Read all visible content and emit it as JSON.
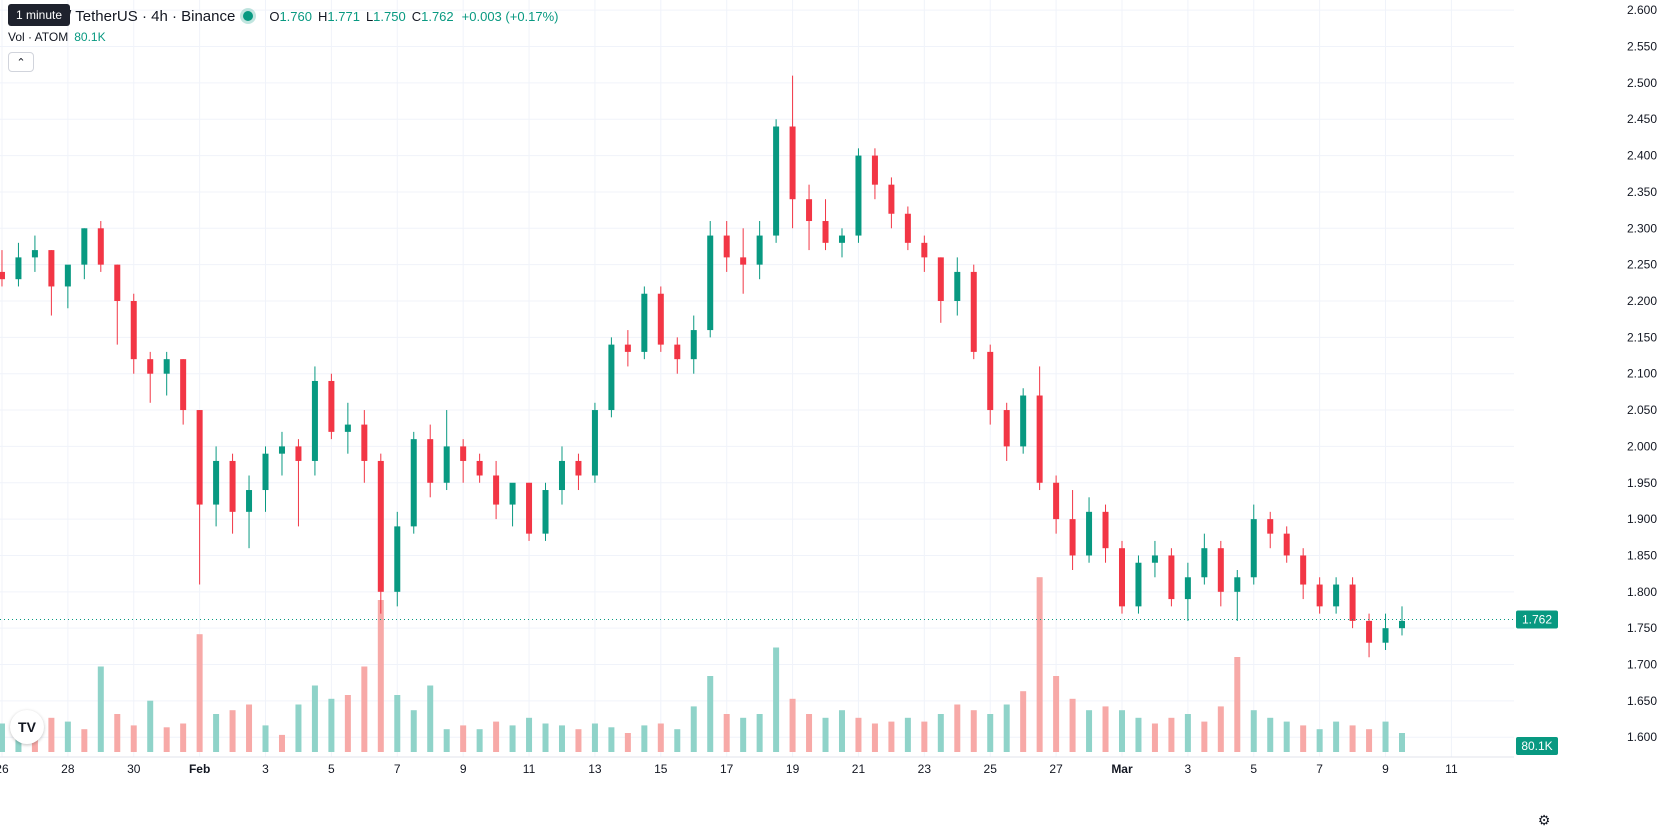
{
  "header": {
    "symbol_title": "Cosmos / TetherUS · 4h · Binance",
    "tooltip": "1 minute",
    "ohlc": {
      "o_label": "O",
      "o": "1.760",
      "h_label": "H",
      "h": "1.771",
      "l_label": "L",
      "l": "1.750",
      "c_label": "C",
      "c": "1.762",
      "change": "+0.003 (+0.17%)"
    },
    "volume_label": "Vol · ATOM",
    "volume_value": "80.1K",
    "collapse_icon": "chevron-up-icon"
  },
  "price_scale": {
    "current_price": "1.762",
    "current_volume": "80.1K"
  },
  "colors": {
    "up": "#089981",
    "down": "#f23645",
    "up_volume": "#8fd3c9",
    "down_volume": "#f7a9a7",
    "grid": "#f0f3fa"
  },
  "chart_data": {
    "type": "candlestick",
    "y_ticks": [
      "2.600",
      "2.550",
      "2.500",
      "2.450",
      "2.400",
      "2.350",
      "2.300",
      "2.250",
      "2.200",
      "2.150",
      "2.100",
      "2.050",
      "2.000",
      "1.950",
      "1.900",
      "1.850",
      "1.800",
      "1.750",
      "1.700",
      "1.650",
      "1.600"
    ],
    "ylim": [
      1.5728,
      2.614
    ],
    "x_ticks": [
      "26",
      "28",
      "30",
      "Feb",
      "3",
      "5",
      "7",
      "9",
      "11",
      "13",
      "15",
      "17",
      "19",
      "21",
      "23",
      "25",
      "27",
      "Mar",
      "3",
      "5",
      "7",
      "9",
      "11"
    ],
    "x_tick_days": [
      -6,
      -4,
      -2,
      0,
      2,
      4,
      6,
      8,
      10,
      12,
      14,
      16,
      18,
      20,
      22,
      24,
      26,
      28,
      30,
      32,
      34,
      36,
      38
    ],
    "xlim": [
      -6.06,
      39.9
    ],
    "last_price": 1.762,
    "series": [
      {
        "t": -6.0,
        "o": 2.24,
        "h": 2.27,
        "l": 2.22,
        "c": 2.23
      },
      {
        "t": -5.5,
        "o": 2.23,
        "h": 2.28,
        "l": 2.22,
        "c": 2.26
      },
      {
        "t": -5.0,
        "o": 2.26,
        "h": 2.29,
        "l": 2.24,
        "c": 2.27
      },
      {
        "t": -4.5,
        "o": 2.27,
        "h": 2.27,
        "l": 2.18,
        "c": 2.22
      },
      {
        "t": -4.0,
        "o": 2.22,
        "h": 2.24,
        "l": 2.19,
        "c": 2.25
      },
      {
        "t": -3.5,
        "o": 2.25,
        "h": 2.3,
        "l": 2.23,
        "c": 2.3
      },
      {
        "t": -3.0,
        "o": 2.3,
        "h": 2.31,
        "l": 2.24,
        "c": 2.25
      },
      {
        "t": -2.5,
        "o": 2.25,
        "h": 2.25,
        "l": 2.14,
        "c": 2.2
      },
      {
        "t": -2.0,
        "o": 2.2,
        "h": 2.21,
        "l": 2.1,
        "c": 2.12
      },
      {
        "t": -1.5,
        "o": 2.12,
        "h": 2.13,
        "l": 2.06,
        "c": 2.1
      },
      {
        "t": -1.0,
        "o": 2.1,
        "h": 2.13,
        "l": 2.07,
        "c": 2.12
      },
      {
        "t": -0.5,
        "o": 2.12,
        "h": 2.12,
        "l": 2.03,
        "c": 2.05
      },
      {
        "t": 0.0,
        "o": 2.05,
        "h": 2.05,
        "l": 1.81,
        "c": 1.92
      },
      {
        "t": 0.5,
        "o": 1.92,
        "h": 2.0,
        "l": 1.89,
        "c": 1.98
      },
      {
        "t": 1.0,
        "o": 1.98,
        "h": 1.99,
        "l": 1.88,
        "c": 1.91
      },
      {
        "t": 1.5,
        "o": 1.91,
        "h": 1.96,
        "l": 1.86,
        "c": 1.94
      },
      {
        "t": 2.0,
        "o": 1.94,
        "h": 2.0,
        "l": 1.91,
        "c": 1.99
      },
      {
        "t": 2.5,
        "o": 1.99,
        "h": 2.02,
        "l": 1.96,
        "c": 2.0
      },
      {
        "t": 3.0,
        "o": 2.0,
        "h": 2.01,
        "l": 1.89,
        "c": 1.98
      },
      {
        "t": 3.5,
        "o": 1.98,
        "h": 2.11,
        "l": 1.96,
        "c": 2.09
      },
      {
        "t": 4.0,
        "o": 2.09,
        "h": 2.1,
        "l": 2.01,
        "c": 2.02
      },
      {
        "t": 4.5,
        "o": 2.02,
        "h": 2.06,
        "l": 1.99,
        "c": 2.03
      },
      {
        "t": 5.0,
        "o": 2.03,
        "h": 2.05,
        "l": 1.95,
        "c": 1.98
      },
      {
        "t": 5.5,
        "o": 1.98,
        "h": 1.99,
        "l": 1.77,
        "c": 1.8
      },
      {
        "t": 6.0,
        "o": 1.8,
        "h": 1.91,
        "l": 1.78,
        "c": 1.89
      },
      {
        "t": 6.5,
        "o": 1.89,
        "h": 2.02,
        "l": 1.88,
        "c": 2.01
      },
      {
        "t": 7.0,
        "o": 2.01,
        "h": 2.03,
        "l": 1.93,
        "c": 1.95
      },
      {
        "t": 7.5,
        "o": 1.95,
        "h": 2.05,
        "l": 1.94,
        "c": 2.0
      },
      {
        "t": 8.0,
        "o": 2.0,
        "h": 2.01,
        "l": 1.95,
        "c": 1.98
      },
      {
        "t": 8.5,
        "o": 1.98,
        "h": 1.99,
        "l": 1.95,
        "c": 1.96
      },
      {
        "t": 9.0,
        "o": 1.96,
        "h": 1.98,
        "l": 1.9,
        "c": 1.92
      },
      {
        "t": 9.5,
        "o": 1.92,
        "h": 1.94,
        "l": 1.89,
        "c": 1.95
      },
      {
        "t": 10.0,
        "o": 1.95,
        "h": 1.95,
        "l": 1.87,
        "c": 1.88
      },
      {
        "t": 10.5,
        "o": 1.88,
        "h": 1.95,
        "l": 1.87,
        "c": 1.94
      },
      {
        "t": 11.0,
        "o": 1.94,
        "h": 2.0,
        "l": 1.92,
        "c": 1.98
      },
      {
        "t": 11.5,
        "o": 1.98,
        "h": 1.99,
        "l": 1.94,
        "c": 1.96
      },
      {
        "t": 12.0,
        "o": 1.96,
        "h": 2.06,
        "l": 1.95,
        "c": 2.05
      },
      {
        "t": 12.5,
        "o": 2.05,
        "h": 2.15,
        "l": 2.04,
        "c": 2.14
      },
      {
        "t": 13.0,
        "o": 2.14,
        "h": 2.16,
        "l": 2.11,
        "c": 2.13
      },
      {
        "t": 13.5,
        "o": 2.13,
        "h": 2.22,
        "l": 2.12,
        "c": 2.21
      },
      {
        "t": 14.0,
        "o": 2.21,
        "h": 2.22,
        "l": 2.13,
        "c": 2.14
      },
      {
        "t": 14.5,
        "o": 2.14,
        "h": 2.15,
        "l": 2.1,
        "c": 2.12
      },
      {
        "t": 15.0,
        "o": 2.12,
        "h": 2.18,
        "l": 2.1,
        "c": 2.16
      },
      {
        "t": 15.5,
        "o": 2.16,
        "h": 2.31,
        "l": 2.15,
        "c": 2.29
      },
      {
        "t": 16.0,
        "o": 2.29,
        "h": 2.31,
        "l": 2.24,
        "c": 2.26
      },
      {
        "t": 16.5,
        "o": 2.26,
        "h": 2.3,
        "l": 2.21,
        "c": 2.25
      },
      {
        "t": 17.0,
        "o": 2.25,
        "h": 2.31,
        "l": 2.23,
        "c": 2.29
      },
      {
        "t": 17.5,
        "o": 2.29,
        "h": 2.45,
        "l": 2.28,
        "c": 2.44
      },
      {
        "t": 18.0,
        "o": 2.44,
        "h": 2.51,
        "l": 2.3,
        "c": 2.34
      },
      {
        "t": 18.5,
        "o": 2.34,
        "h": 2.36,
        "l": 2.27,
        "c": 2.31
      },
      {
        "t": 19.0,
        "o": 2.31,
        "h": 2.34,
        "l": 2.27,
        "c": 2.28
      },
      {
        "t": 19.5,
        "o": 2.28,
        "h": 2.3,
        "l": 2.26,
        "c": 2.29
      },
      {
        "t": 20.0,
        "o": 2.29,
        "h": 2.41,
        "l": 2.28,
        "c": 2.4
      },
      {
        "t": 20.5,
        "o": 2.4,
        "h": 2.41,
        "l": 2.34,
        "c": 2.36
      },
      {
        "t": 21.0,
        "o": 2.36,
        "h": 2.37,
        "l": 2.3,
        "c": 2.32
      },
      {
        "t": 21.5,
        "o": 2.32,
        "h": 2.33,
        "l": 2.27,
        "c": 2.28
      },
      {
        "t": 22.0,
        "o": 2.28,
        "h": 2.29,
        "l": 2.24,
        "c": 2.26
      },
      {
        "t": 22.5,
        "o": 2.26,
        "h": 2.26,
        "l": 2.17,
        "c": 2.2
      },
      {
        "t": 23.0,
        "o": 2.2,
        "h": 2.26,
        "l": 2.18,
        "c": 2.24
      },
      {
        "t": 23.5,
        "o": 2.24,
        "h": 2.25,
        "l": 2.12,
        "c": 2.13
      },
      {
        "t": 24.0,
        "o": 2.13,
        "h": 2.14,
        "l": 2.03,
        "c": 2.05
      },
      {
        "t": 24.5,
        "o": 2.05,
        "h": 2.06,
        "l": 1.98,
        "c": 2.0
      },
      {
        "t": 25.0,
        "o": 2.0,
        "h": 2.08,
        "l": 1.99,
        "c": 2.07
      },
      {
        "t": 25.5,
        "o": 2.07,
        "h": 2.11,
        "l": 1.94,
        "c": 1.95
      },
      {
        "t": 26.0,
        "o": 1.95,
        "h": 1.96,
        "l": 1.88,
        "c": 1.9
      },
      {
        "t": 26.5,
        "o": 1.9,
        "h": 1.94,
        "l": 1.83,
        "c": 1.85
      },
      {
        "t": 27.0,
        "o": 1.85,
        "h": 1.93,
        "l": 1.84,
        "c": 1.91
      },
      {
        "t": 27.5,
        "o": 1.91,
        "h": 1.92,
        "l": 1.84,
        "c": 1.86
      },
      {
        "t": 28.0,
        "o": 1.86,
        "h": 1.87,
        "l": 1.77,
        "c": 1.78
      },
      {
        "t": 28.5,
        "o": 1.78,
        "h": 1.85,
        "l": 1.77,
        "c": 1.84
      },
      {
        "t": 29.0,
        "o": 1.84,
        "h": 1.87,
        "l": 1.82,
        "c": 1.85
      },
      {
        "t": 29.5,
        "o": 1.85,
        "h": 1.86,
        "l": 1.78,
        "c": 1.79
      },
      {
        "t": 30.0,
        "o": 1.79,
        "h": 1.84,
        "l": 1.76,
        "c": 1.82
      },
      {
        "t": 30.5,
        "o": 1.82,
        "h": 1.88,
        "l": 1.81,
        "c": 1.86
      },
      {
        "t": 31.0,
        "o": 1.86,
        "h": 1.87,
        "l": 1.78,
        "c": 1.8
      },
      {
        "t": 31.5,
        "o": 1.8,
        "h": 1.83,
        "l": 1.76,
        "c": 1.82
      },
      {
        "t": 32.0,
        "o": 1.82,
        "h": 1.92,
        "l": 1.81,
        "c": 1.9
      },
      {
        "t": 32.5,
        "o": 1.9,
        "h": 1.91,
        "l": 1.86,
        "c": 1.88
      },
      {
        "t": 33.0,
        "o": 1.88,
        "h": 1.89,
        "l": 1.84,
        "c": 1.85
      },
      {
        "t": 33.5,
        "o": 1.85,
        "h": 1.86,
        "l": 1.79,
        "c": 1.81
      },
      {
        "t": 34.0,
        "o": 1.81,
        "h": 1.82,
        "l": 1.77,
        "c": 1.78
      },
      {
        "t": 34.5,
        "o": 1.78,
        "h": 1.82,
        "l": 1.77,
        "c": 1.81
      },
      {
        "t": 35.0,
        "o": 1.81,
        "h": 1.82,
        "l": 1.75,
        "c": 1.76
      },
      {
        "t": 35.5,
        "o": 1.76,
        "h": 1.77,
        "l": 1.71,
        "c": 1.73
      },
      {
        "t": 36.0,
        "o": 1.73,
        "h": 1.77,
        "l": 1.72,
        "c": 1.75
      },
      {
        "t": 36.5,
        "o": 1.75,
        "h": 1.78,
        "l": 1.74,
        "c": 1.76
      }
    ],
    "volume": {
      "scale_max": 100,
      "bars": [
        {
          "t": -6.0,
          "v": 15,
          "dir": "up"
        },
        {
          "t": -5.5,
          "v": 17,
          "dir": "up"
        },
        {
          "t": -5.0,
          "v": 13,
          "dir": "down"
        },
        {
          "t": -4.5,
          "v": 18,
          "dir": "down"
        },
        {
          "t": -4.0,
          "v": 16,
          "dir": "up"
        },
        {
          "t": -3.5,
          "v": 12,
          "dir": "down"
        },
        {
          "t": -3.0,
          "v": 45,
          "dir": "up"
        },
        {
          "t": -2.5,
          "v": 20,
          "dir": "down"
        },
        {
          "t": -2.0,
          "v": 14,
          "dir": "down"
        },
        {
          "t": -1.5,
          "v": 27,
          "dir": "up"
        },
        {
          "t": -1.0,
          "v": 13,
          "dir": "down"
        },
        {
          "t": -0.5,
          "v": 15,
          "dir": "down"
        },
        {
          "t": 0.0,
          "v": 62,
          "dir": "down"
        },
        {
          "t": 0.5,
          "v": 20,
          "dir": "up"
        },
        {
          "t": 1.0,
          "v": 22,
          "dir": "down"
        },
        {
          "t": 1.5,
          "v": 25,
          "dir": "down"
        },
        {
          "t": 2.0,
          "v": 14,
          "dir": "up"
        },
        {
          "t": 2.5,
          "v": 9,
          "dir": "down"
        },
        {
          "t": 3.0,
          "v": 25,
          "dir": "up"
        },
        {
          "t": 3.5,
          "v": 35,
          "dir": "up"
        },
        {
          "t": 4.0,
          "v": 28,
          "dir": "up"
        },
        {
          "t": 4.5,
          "v": 30,
          "dir": "down"
        },
        {
          "t": 5.0,
          "v": 45,
          "dir": "down"
        },
        {
          "t": 5.5,
          "v": 80,
          "dir": "down"
        },
        {
          "t": 6.0,
          "v": 30,
          "dir": "up"
        },
        {
          "t": 6.5,
          "v": 22,
          "dir": "up"
        },
        {
          "t": 7.0,
          "v": 35,
          "dir": "up"
        },
        {
          "t": 7.5,
          "v": 12,
          "dir": "up"
        },
        {
          "t": 8.0,
          "v": 14,
          "dir": "down"
        },
        {
          "t": 8.5,
          "v": 12,
          "dir": "up"
        },
        {
          "t": 9.0,
          "v": 16,
          "dir": "down"
        },
        {
          "t": 9.5,
          "v": 14,
          "dir": "up"
        },
        {
          "t": 10.0,
          "v": 18,
          "dir": "up"
        },
        {
          "t": 10.5,
          "v": 15,
          "dir": "up"
        },
        {
          "t": 11.0,
          "v": 14,
          "dir": "up"
        },
        {
          "t": 11.5,
          "v": 12,
          "dir": "down"
        },
        {
          "t": 12.0,
          "v": 15,
          "dir": "up"
        },
        {
          "t": 12.5,
          "v": 13,
          "dir": "up"
        },
        {
          "t": 13.0,
          "v": 10,
          "dir": "down"
        },
        {
          "t": 13.5,
          "v": 14,
          "dir": "up"
        },
        {
          "t": 14.0,
          "v": 15,
          "dir": "down"
        },
        {
          "t": 14.5,
          "v": 12,
          "dir": "up"
        },
        {
          "t": 15.0,
          "v": 24,
          "dir": "up"
        },
        {
          "t": 15.5,
          "v": 40,
          "dir": "up"
        },
        {
          "t": 16.0,
          "v": 20,
          "dir": "down"
        },
        {
          "t": 16.5,
          "v": 18,
          "dir": "up"
        },
        {
          "t": 17.0,
          "v": 20,
          "dir": "up"
        },
        {
          "t": 17.5,
          "v": 55,
          "dir": "up"
        },
        {
          "t": 18.0,
          "v": 28,
          "dir": "down"
        },
        {
          "t": 18.5,
          "v": 20,
          "dir": "down"
        },
        {
          "t": 19.0,
          "v": 18,
          "dir": "up"
        },
        {
          "t": 19.5,
          "v": 22,
          "dir": "up"
        },
        {
          "t": 20.0,
          "v": 18,
          "dir": "down"
        },
        {
          "t": 20.5,
          "v": 15,
          "dir": "down"
        },
        {
          "t": 21.0,
          "v": 16,
          "dir": "down"
        },
        {
          "t": 21.5,
          "v": 18,
          "dir": "up"
        },
        {
          "t": 22.0,
          "v": 16,
          "dir": "down"
        },
        {
          "t": 22.5,
          "v": 20,
          "dir": "up"
        },
        {
          "t": 23.0,
          "v": 25,
          "dir": "down"
        },
        {
          "t": 23.5,
          "v": 22,
          "dir": "down"
        },
        {
          "t": 24.0,
          "v": 20,
          "dir": "up"
        },
        {
          "t": 24.5,
          "v": 25,
          "dir": "up"
        },
        {
          "t": 25.0,
          "v": 32,
          "dir": "down"
        },
        {
          "t": 25.5,
          "v": 92,
          "dir": "down"
        },
        {
          "t": 26.0,
          "v": 40,
          "dir": "down"
        },
        {
          "t": 26.5,
          "v": 28,
          "dir": "down"
        },
        {
          "t": 27.0,
          "v": 22,
          "dir": "up"
        },
        {
          "t": 27.5,
          "v": 24,
          "dir": "down"
        },
        {
          "t": 28.0,
          "v": 22,
          "dir": "up"
        },
        {
          "t": 28.5,
          "v": 18,
          "dir": "up"
        },
        {
          "t": 29.0,
          "v": 15,
          "dir": "down"
        },
        {
          "t": 29.5,
          "v": 18,
          "dir": "down"
        },
        {
          "t": 30.0,
          "v": 20,
          "dir": "up"
        },
        {
          "t": 30.5,
          "v": 16,
          "dir": "down"
        },
        {
          "t": 31.0,
          "v": 24,
          "dir": "down"
        },
        {
          "t": 31.5,
          "v": 50,
          "dir": "down"
        },
        {
          "t": 32.0,
          "v": 22,
          "dir": "up"
        },
        {
          "t": 32.5,
          "v": 18,
          "dir": "up"
        },
        {
          "t": 33.0,
          "v": 16,
          "dir": "up"
        },
        {
          "t": 33.5,
          "v": 14,
          "dir": "down"
        },
        {
          "t": 34.0,
          "v": 12,
          "dir": "up"
        },
        {
          "t": 34.5,
          "v": 16,
          "dir": "up"
        },
        {
          "t": 35.0,
          "v": 14,
          "dir": "down"
        },
        {
          "t": 35.5,
          "v": 12,
          "dir": "down"
        },
        {
          "t": 36.0,
          "v": 16,
          "dir": "up"
        },
        {
          "t": 36.5,
          "v": 10,
          "dir": "up"
        }
      ]
    }
  }
}
